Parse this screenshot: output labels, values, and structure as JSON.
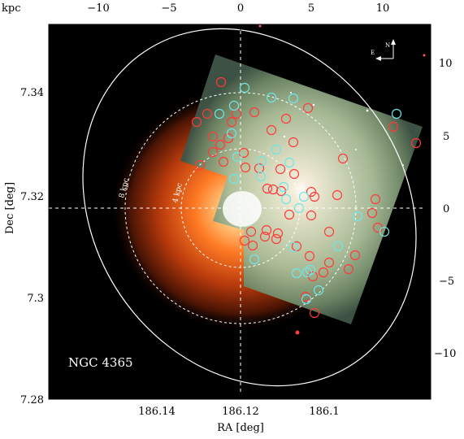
{
  "figure": {
    "object_label": "NGC 4365",
    "compass": {
      "north": "N",
      "east": "E"
    },
    "annotations": {
      "ring_outer": "8 kpc",
      "ring_inner": "4 kpc"
    },
    "axes": {
      "bottom": {
        "label": "RA [deg]",
        "ticks": [
          "186.14",
          "186.12",
          "186.1"
        ]
      },
      "left": {
        "label": "Dec [deg]",
        "ticks": [
          "7.34",
          "7.32",
          "7.3",
          "7.28"
        ]
      },
      "top": {
        "label": "kpc",
        "ticks": [
          "−10",
          "−5",
          "0",
          "5",
          "10"
        ]
      },
      "right": {
        "ticks": [
          "10",
          "5",
          "0",
          "−5",
          "−10"
        ]
      }
    },
    "colors": {
      "background": "#000000",
      "xray_glow": "#ff6a1f",
      "optical_field": "#c9d8bb",
      "red_circles": "#ff3a3a",
      "cyan_circles": "#6fe6e6",
      "guides": "#ffffff"
    }
  }
}
